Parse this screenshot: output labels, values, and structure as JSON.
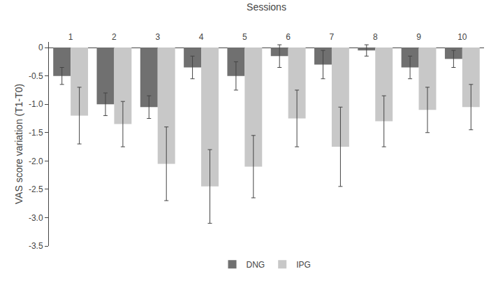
{
  "chart_data": {
    "type": "bar",
    "xlabel": "Sessions",
    "ylabel": "VAS score variation (T1-T0)",
    "categories": [
      "1",
      "2",
      "3",
      "4",
      "5",
      "6",
      "7",
      "8",
      "9",
      "10"
    ],
    "series": [
      {
        "name": "DNG",
        "color": "#707070",
        "values": [
          -0.5,
          -1.0,
          -1.05,
          -0.35,
          -0.5,
          -0.15,
          -0.3,
          -0.05,
          -0.35,
          -0.2
        ],
        "errors": [
          0.15,
          0.2,
          0.2,
          0.2,
          0.25,
          0.2,
          0.25,
          0.1,
          0.2,
          0.15
        ]
      },
      {
        "name": "IPG",
        "color": "#c8c8c8",
        "values": [
          -1.2,
          -1.35,
          -2.05,
          -2.45,
          -2.1,
          -1.25,
          -1.75,
          -1.3,
          -1.1,
          -1.05
        ],
        "errors": [
          0.5,
          0.4,
          0.65,
          0.65,
          0.55,
          0.5,
          0.7,
          0.45,
          0.4,
          0.4
        ]
      }
    ],
    "ylim": [
      -3.5,
      0.1
    ],
    "yticks": [
      0,
      -0.5,
      {
        "value": -1.0,
        "label": "-1.0"
      },
      -1.5,
      {
        "value": -2.0,
        "label": "-2.0"
      },
      -2.5,
      {
        "value": -3.0,
        "label": "-3.0"
      },
      -3.5
    ],
    "grid": false,
    "legend": "bottom"
  }
}
